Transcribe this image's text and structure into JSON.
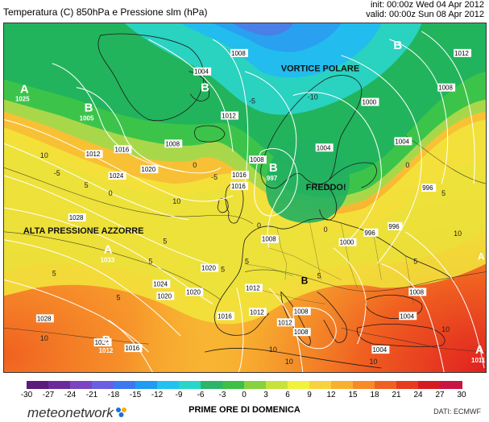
{
  "header": {
    "title": "Temperatura (C) 850hPa e Pressione slm (hPa)",
    "init": "init: 00:00z Wed 04 Apr 2012",
    "valid": "valid: 00:00z Sun 08 Apr 2012"
  },
  "map": {
    "labels": {
      "vortice": "VORTICE POLARE",
      "freddo": "FREDDO!",
      "azzorre": "ALTA PRESSIONE AZZORRE"
    },
    "centers": [
      {
        "id": "a-greenland",
        "letter": "A",
        "value": "1025"
      },
      {
        "id": "b-greenland",
        "letter": "B",
        "value": "1005"
      },
      {
        "id": "b-north",
        "letter": "B",
        "value": ""
      },
      {
        "id": "b-arctic",
        "letter": "B",
        "value": ""
      },
      {
        "id": "b-northsea",
        "letter": "B",
        "value": "997"
      },
      {
        "id": "a-azores",
        "letter": "A",
        "value": "1033"
      },
      {
        "id": "b-atlantic",
        "letter": "B",
        "value": "1012"
      },
      {
        "id": "b-italy",
        "letter": "B",
        "value": ""
      },
      {
        "id": "a-east",
        "letter": "A",
        "value": "1011"
      },
      {
        "id": "a-russia",
        "letter": "A",
        "value": ""
      }
    ],
    "isobars": [
      "1004",
      "1008",
      "1012",
      "1016",
      "1020",
      "1024",
      "1028",
      "1000",
      "996",
      "1004",
      "1008",
      "1012",
      "1016",
      "1020",
      "1024",
      "1028",
      "1008",
      "1000",
      "996",
      "1004",
      "1008",
      "1016",
      "1012",
      "1008",
      "1016",
      "1020",
      "1024",
      "1012",
      "1004",
      "1008",
      "1016",
      "1020",
      "1012",
      "1008",
      "1012",
      "1004",
      "1008",
      "996"
    ],
    "isotherms": [
      "10",
      "-5",
      "5",
      "10",
      "5",
      "0",
      "-5",
      "5",
      "10",
      "5",
      "0",
      "-10",
      "5",
      "10",
      "5",
      "0",
      "5",
      "10",
      "5",
      "0",
      "-5",
      "0",
      "10",
      "5",
      "10",
      "10",
      "5"
    ]
  },
  "legend": {
    "ticks": [
      "-30",
      "-27",
      "-24",
      "-21",
      "-18",
      "-15",
      "-12",
      "-9",
      "-6",
      "-3",
      "0",
      "3",
      "6",
      "9",
      "12",
      "15",
      "18",
      "21",
      "24",
      "27",
      "30"
    ],
    "colors": [
      "#5c1a7a",
      "#6a2a9c",
      "#7a44c2",
      "#6a5fe0",
      "#3c78f0",
      "#1f9bf0",
      "#22c2f0",
      "#28d6c8",
      "#2ab56a",
      "#3cc046",
      "#86d23c",
      "#c8e23c",
      "#f2f23c",
      "#f8d23c",
      "#f8b030",
      "#f88a28",
      "#f06020",
      "#e43c1c",
      "#d41c20",
      "#c81440"
    ]
  },
  "footer": {
    "logo": "meteonetwork",
    "center": "PRIME ORE DI DOMENICA",
    "source": "DATI: ECMWF"
  }
}
